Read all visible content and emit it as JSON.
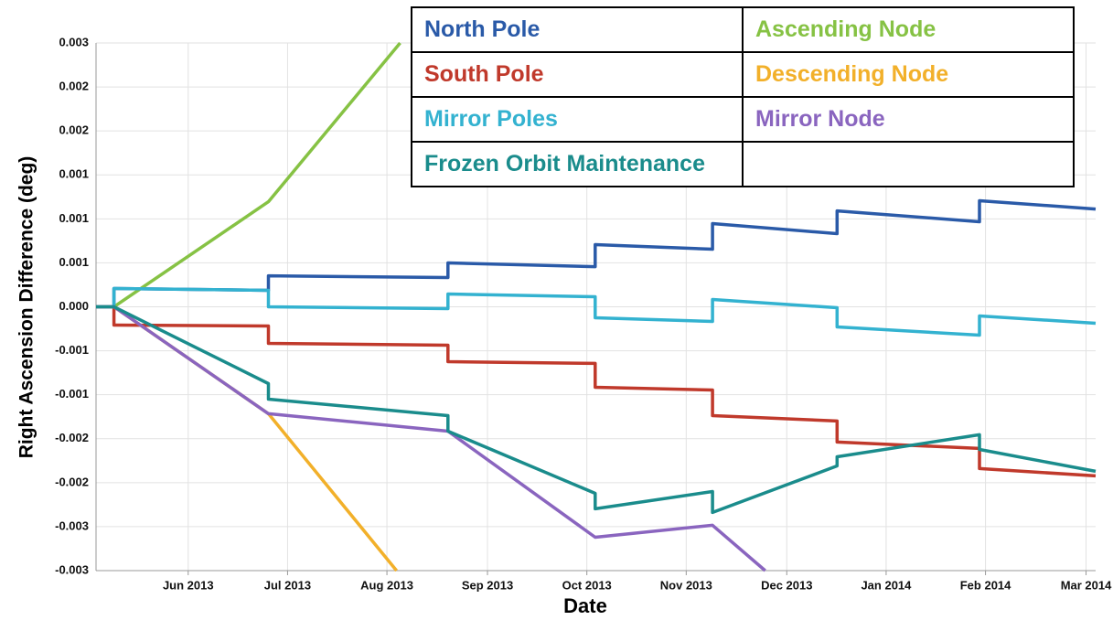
{
  "chart_data": {
    "type": "line",
    "xlabel": "Date",
    "ylabel": "Right Ascension Difference (deg)",
    "xlim": [
      2013.34,
      2014.175
    ],
    "xticks": [
      {
        "value": 2013.417,
        "label": "Jun 2013"
      },
      {
        "value": 2013.5,
        "label": "Jul 2013"
      },
      {
        "value": 2013.583,
        "label": "Aug 2013"
      },
      {
        "value": 2013.667,
        "label": "Sep 2013"
      },
      {
        "value": 2013.75,
        "label": "Oct 2013"
      },
      {
        "value": 2013.833,
        "label": "Nov 2013"
      },
      {
        "value": 2013.917,
        "label": "Dec 2013"
      },
      {
        "value": 2014.0,
        "label": "Jan 2014"
      },
      {
        "value": 2014.083,
        "label": "Feb 2014"
      },
      {
        "value": 2014.167,
        "label": "Mar 2014"
      }
    ],
    "ylim": [
      -0.003,
      0.003
    ],
    "yticks": [
      {
        "value": 0.003,
        "label": "0.003"
      },
      {
        "value": 0.0025,
        "label": "0.002"
      },
      {
        "value": 0.002,
        "label": "0.002"
      },
      {
        "value": 0.0015,
        "label": "0.001"
      },
      {
        "value": 0.001,
        "label": "0.001"
      },
      {
        "value": 0.0005,
        "label": "0.001"
      },
      {
        "value": 0,
        "label": "0.000"
      },
      {
        "value": -0.0005,
        "label": "-0.001"
      },
      {
        "value": -0.001,
        "label": "-0.001"
      },
      {
        "value": -0.0015,
        "label": "-0.002"
      },
      {
        "value": -0.002,
        "label": "-0.002"
      },
      {
        "value": -0.0025,
        "label": "-0.003"
      },
      {
        "value": -0.003,
        "label": "-0.003"
      }
    ],
    "grid": true,
    "legend": "top-right",
    "series": [
      {
        "name": "North Pole",
        "color": "#2a5aa8",
        "x": [
          2013.34,
          2013.355,
          2013.355,
          2013.484,
          2013.484,
          2013.634,
          2013.634,
          2013.757,
          2013.757,
          2013.855,
          2013.855,
          2013.959,
          2013.959,
          2014.078,
          2014.078,
          2014.175
        ],
        "values": [
          0,
          0,
          0.000208,
          0.000187,
          0.000353,
          0.000333,
          0.000499,
          0.000457,
          0.000707,
          0.000655,
          0.000946,
          0.000832,
          0.001091,
          0.000967,
          0.001206,
          0.001112
        ]
      },
      {
        "name": "Ascending Node",
        "color": "#86c244",
        "x": [
          2013.34,
          2013.355,
          2013.484,
          2013.594
        ],
        "values": [
          0,
          0,
          0.001195,
          0.003
        ]
      },
      {
        "name": "South Pole",
        "color": "#c0392b",
        "x": [
          2013.34,
          2013.355,
          2013.355,
          2013.484,
          2013.484,
          2013.634,
          2013.634,
          2013.757,
          2013.757,
          2013.855,
          2013.855,
          2013.959,
          2013.959,
          2014.078,
          2014.078,
          2014.175
        ],
        "values": [
          0,
          0,
          -0.000208,
          -0.000218,
          -0.000416,
          -0.000437,
          -0.000624,
          -0.000644,
          -0.000915,
          -0.000946,
          -0.001237,
          -0.001299,
          -0.001538,
          -0.001611,
          -0.00184,
          -0.001923
        ]
      },
      {
        "name": "Descending Node",
        "color": "#f2b02a",
        "x": [
          2013.34,
          2013.355,
          2013.484,
          2013.591
        ],
        "values": [
          0,
          0,
          -0.001216,
          -0.003
        ]
      },
      {
        "name": "Mirror Poles",
        "color": "#33b2d0",
        "x": [
          2013.34,
          2013.355,
          2013.355,
          2013.484,
          2013.484,
          2013.634,
          2013.634,
          2013.757,
          2013.757,
          2013.855,
          2013.855,
          2013.959,
          2013.959,
          2014.078,
          2014.078,
          2014.175
        ],
        "values": [
          0,
          0,
          0.000208,
          0.000187,
          0,
          -2.1e-05,
          0.000146,
          0.000114,
          -0.000125,
          -0.000166,
          8.3e-05,
          -1e-05,
          -0.000229,
          -0.000322,
          -0.000104,
          -0.000187
        ]
      },
      {
        "name": "Mirror Node",
        "color": "#8a65bf",
        "x": [
          2013.34,
          2013.355,
          2013.484,
          2013.634,
          2013.757,
          2013.855,
          2013.899
        ],
        "values": [
          0,
          0,
          -0.001216,
          -0.001414,
          -0.00262,
          -0.002484,
          -0.003
        ]
      },
      {
        "name": "Frozen Orbit Maintenance",
        "color": "#1a8c8c",
        "x": [
          2013.34,
          2013.355,
          2013.484,
          2013.484,
          2013.634,
          2013.634,
          2013.757,
          2013.757,
          2013.855,
          2013.855,
          2013.959,
          2013.959,
          2014.078,
          2014.078,
          2014.175
        ],
        "values": [
          0,
          0,
          -0.000873,
          -0.00105,
          -0.001237,
          -0.001414,
          -0.002121,
          -0.002297,
          -0.0021,
          -0.002339,
          -0.001809,
          -0.001705,
          -0.001455,
          -0.001622,
          -0.001871
        ]
      }
    ]
  }
}
